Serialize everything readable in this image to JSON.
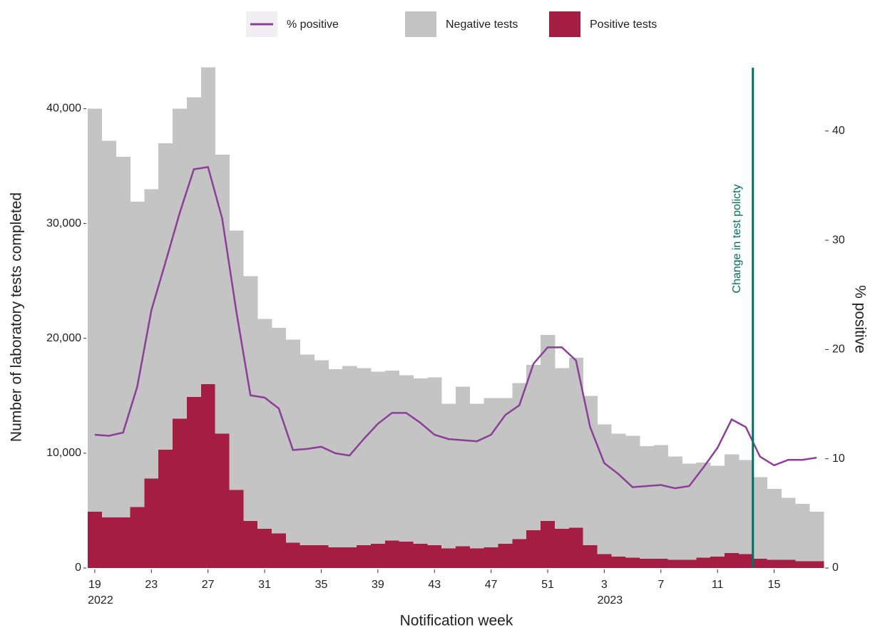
{
  "chart_data": {
    "type": "bar",
    "x_label": "Notification week",
    "y_label": "Number of laboratory tests completed",
    "y2_label": "% positive",
    "categories": [
      "19",
      null,
      null,
      null,
      "23",
      null,
      null,
      null,
      "27",
      null,
      null,
      null,
      "31",
      null,
      null,
      null,
      "35",
      null,
      null,
      null,
      "39",
      null,
      null,
      null,
      "43",
      null,
      null,
      null,
      "47",
      null,
      null,
      null,
      "51",
      null,
      null,
      null,
      "3",
      null,
      null,
      null,
      "7",
      null,
      null,
      null,
      "11",
      null,
      null,
      null,
      "15",
      null,
      null,
      null
    ],
    "category_sublabels": [
      "2022",
      null,
      null,
      null,
      null,
      null,
      null,
      null,
      null,
      null,
      null,
      null,
      null,
      null,
      null,
      null,
      null,
      null,
      null,
      null,
      null,
      null,
      null,
      null,
      null,
      null,
      null,
      null,
      null,
      null,
      null,
      null,
      null,
      null,
      null,
      null,
      "2023",
      null,
      null,
      null,
      null,
      null,
      null,
      null,
      null,
      null,
      null,
      null,
      null,
      null,
      null,
      null
    ],
    "series": [
      {
        "name": "Positive tests",
        "color": "#a51d42",
        "values": [
          4900,
          4400,
          4400,
          5300,
          7800,
          10300,
          13000,
          14900,
          16000,
          11700,
          6800,
          4100,
          3400,
          3000,
          2200,
          2000,
          2000,
          1800,
          1800,
          2000,
          2100,
          2400,
          2300,
          2100,
          2000,
          1700,
          1900,
          1700,
          1800,
          2100,
          2500,
          3300,
          4100,
          3400,
          3500,
          2000,
          1200,
          1000,
          900,
          800,
          800,
          700,
          700,
          900,
          1000,
          1300,
          1200,
          800,
          700,
          700,
          600,
          600
        ]
      },
      {
        "name": "Negative tests",
        "color": "#c4c4c4",
        "values": [
          35100,
          32800,
          31400,
          26600,
          25200,
          26700,
          27000,
          26100,
          27600,
          24300,
          22600,
          21300,
          18300,
          17900,
          17700,
          16600,
          16100,
          15500,
          15800,
          15400,
          15000,
          14800,
          14500,
          14400,
          14600,
          12600,
          13900,
          12600,
          13000,
          12700,
          13600,
          14400,
          16200,
          14000,
          14800,
          13000,
          11300,
          10700,
          10600,
          9800,
          9900,
          9000,
          8400,
          8300,
          7900,
          8600,
          8200,
          7100,
          6200,
          5400,
          5000,
          4300
        ]
      },
      {
        "name": "% positive",
        "color": "#8b3f98",
        "axis": "y2",
        "values": [
          12.2,
          12.1,
          12.4,
          16.6,
          23.6,
          28,
          32.5,
          36.5,
          36.7,
          32,
          23.5,
          15.8,
          15.6,
          14.6,
          10.8,
          10.9,
          11.1,
          10.5,
          10.3,
          11.8,
          13.2,
          14.2,
          14.2,
          13.3,
          12.2,
          11.8,
          11.7,
          11.6,
          12.2,
          14,
          14.9,
          18.7,
          20.2,
          20.2,
          19,
          12.9,
          9.6,
          8.6,
          7.4,
          7.5,
          7.6,
          7.3,
          7.5,
          9.2,
          11,
          13.6,
          12.9,
          10.2,
          9.4,
          9.9,
          9.9,
          10.1
        ]
      }
    ],
    "ylim": [
      0,
      44000
    ],
    "yticks": [
      0,
      {
        "value": 10000,
        "label": "10,000"
      },
      {
        "value": 20000,
        "label": "20,000"
      },
      {
        "value": 30000,
        "label": "30,000"
      },
      {
        "value": 40000,
        "label": "40,000"
      }
    ],
    "y2lim": [
      0,
      46.25
    ],
    "y2ticks": [
      0,
      10,
      20,
      30,
      40
    ],
    "annotation": {
      "text": "Change in test policty",
      "color": "#00715e"
    },
    "legend": "top"
  }
}
